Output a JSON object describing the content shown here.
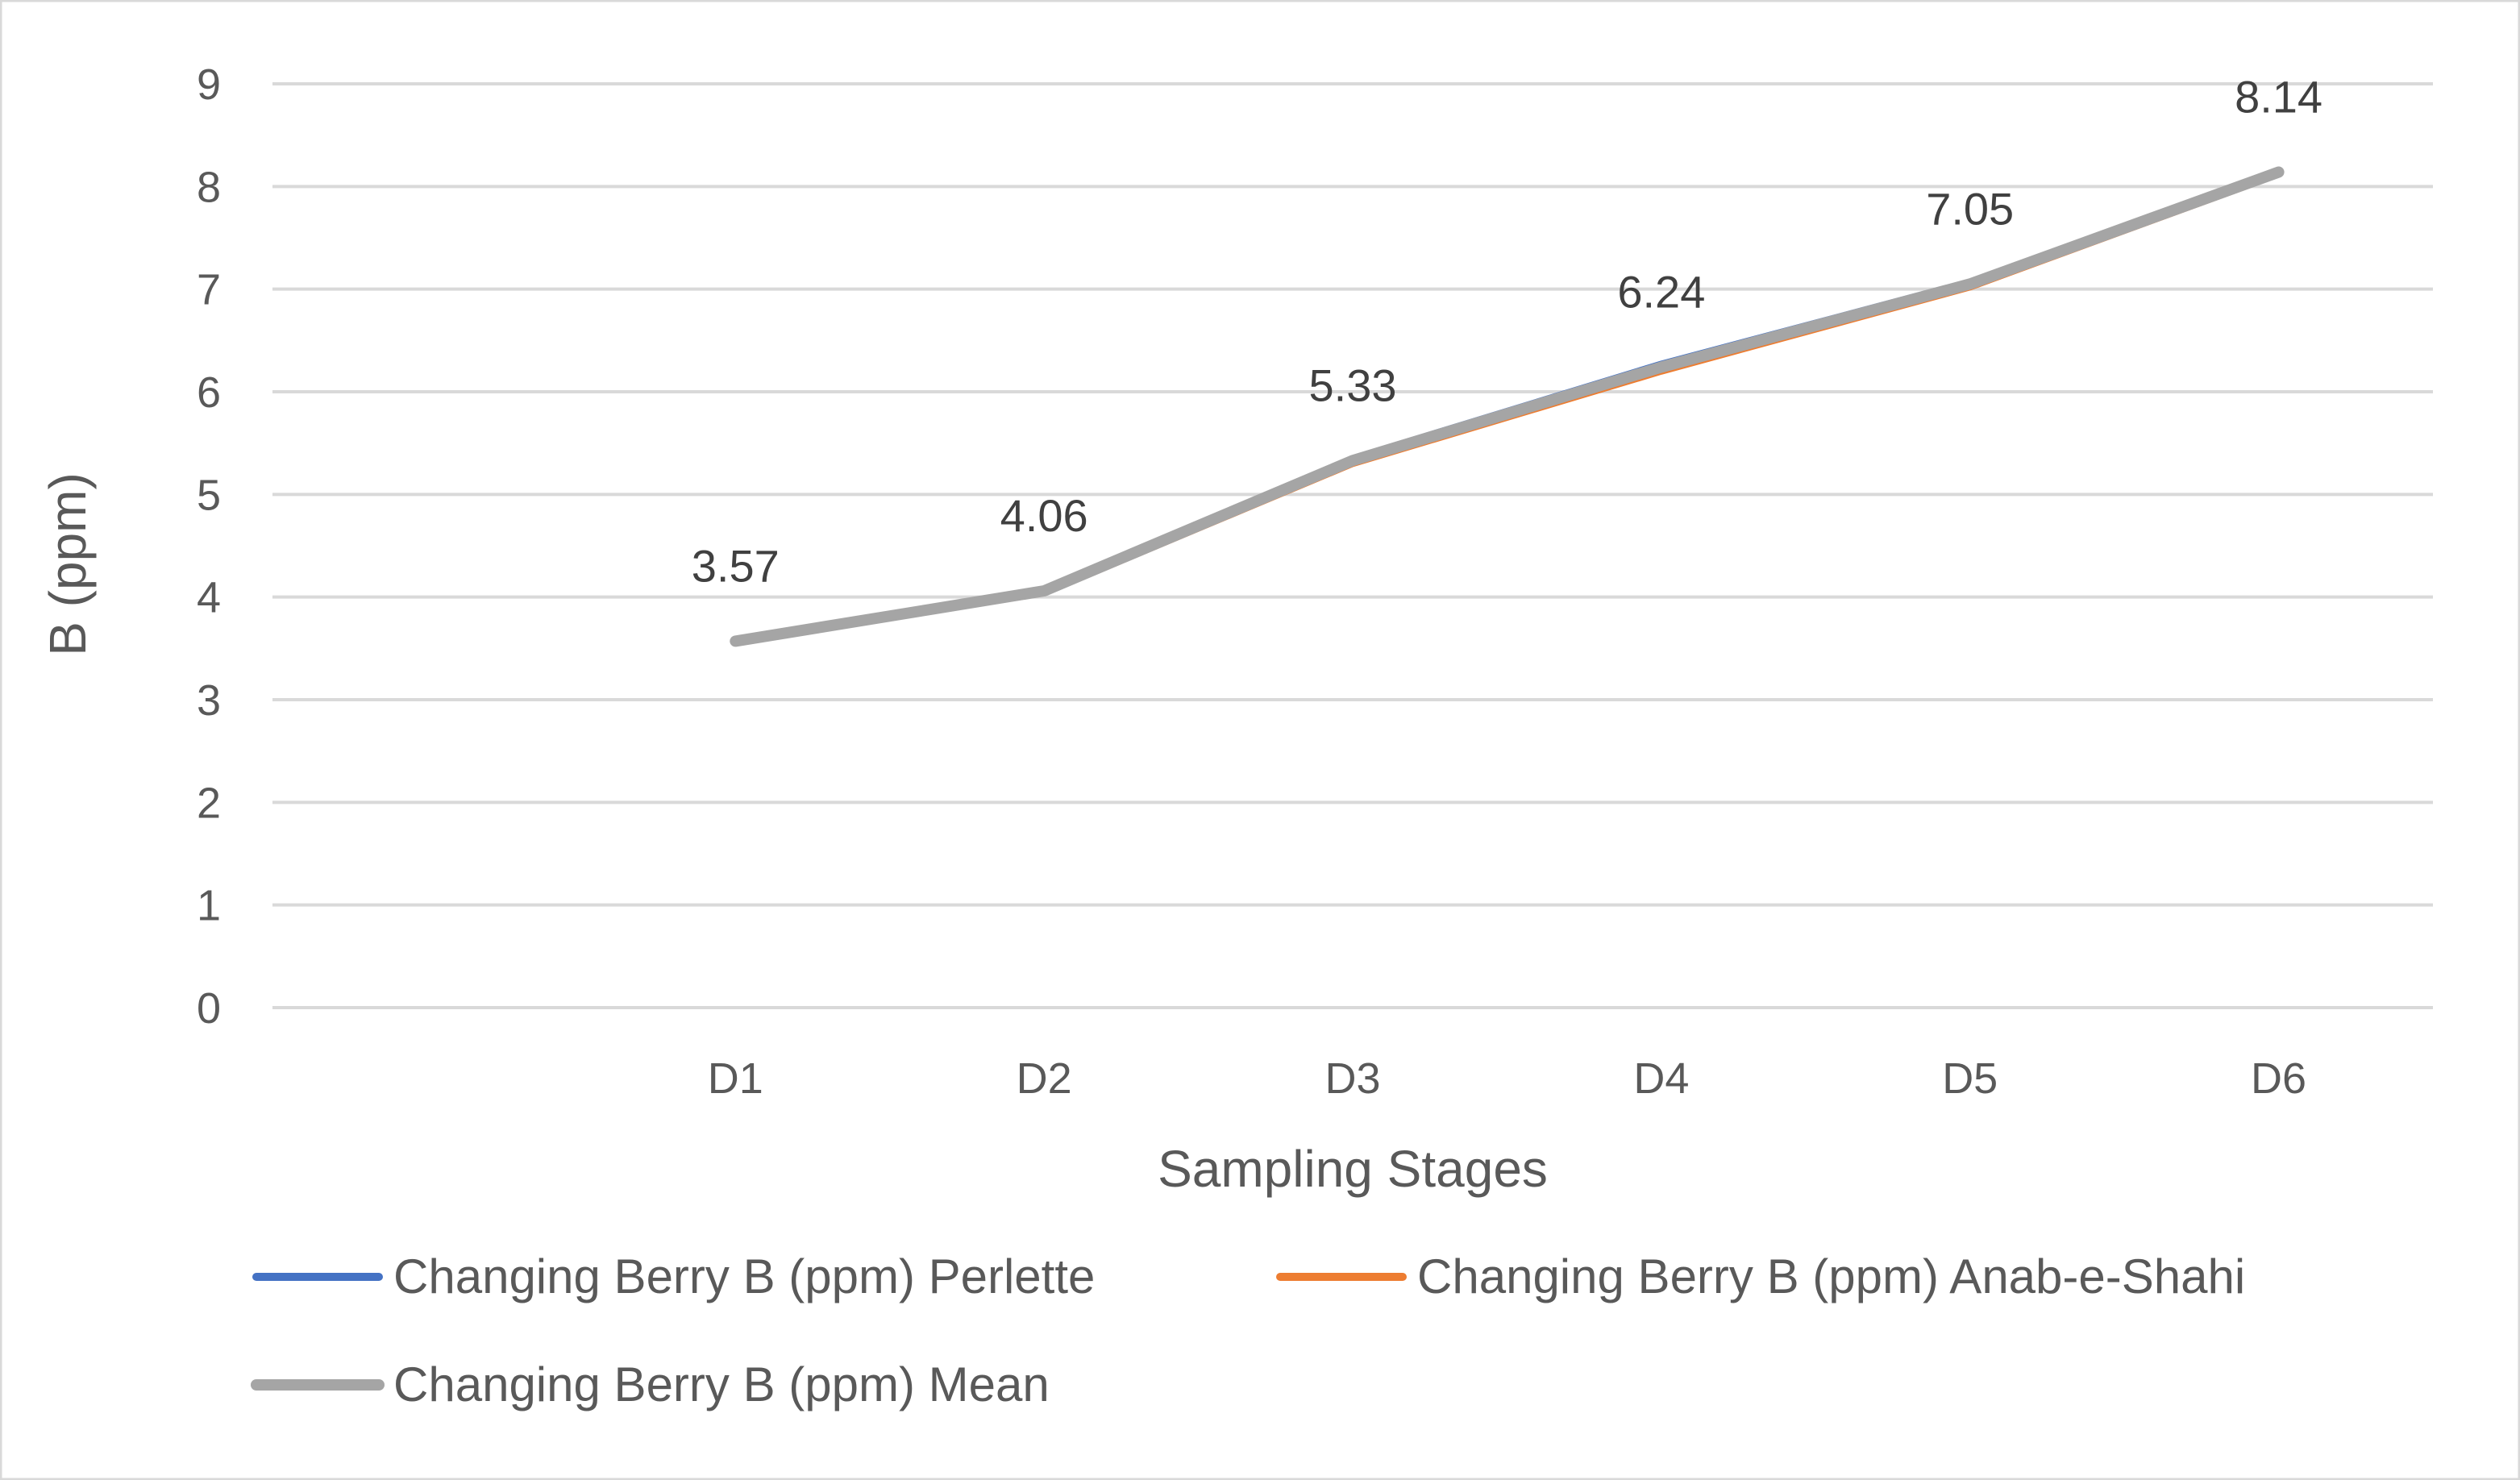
{
  "chart_data": {
    "type": "line",
    "title": "",
    "xlabel": "Sampling Stages",
    "ylabel": "B (ppm)",
    "categories": [
      "D1",
      "D2",
      "D3",
      "D4",
      "D5",
      "D6"
    ],
    "ylim": [
      0,
      9
    ],
    "yticks": [
      0,
      1,
      2,
      3,
      4,
      5,
      6,
      7,
      8,
      9
    ],
    "grid": true,
    "legend_position": "bottom",
    "series": [
      {
        "name": "Changing Berry B (ppm) Perlette",
        "color": "#4472C4",
        "values": [
          3.59,
          4.08,
          5.36,
          6.28,
          7.08,
          8.17
        ]
      },
      {
        "name": "Changing Berry B (ppm) Anab-e-Shahi",
        "color": "#ED7D31",
        "values": [
          3.55,
          4.03,
          5.29,
          6.19,
          7.01,
          8.11
        ]
      },
      {
        "name": "Changing Berry B (ppm) Mean",
        "color": "#A5A5A5",
        "values": [
          3.57,
          4.06,
          5.33,
          6.24,
          7.05,
          8.14
        ]
      }
    ],
    "data_labels": [
      "3.57",
      "4.06",
      "5.33",
      "6.24",
      "7.05",
      "8.14"
    ]
  },
  "colors": {
    "gridline": "#D9D9D9",
    "text": "#595959",
    "frame": "#D9D9D9"
  }
}
